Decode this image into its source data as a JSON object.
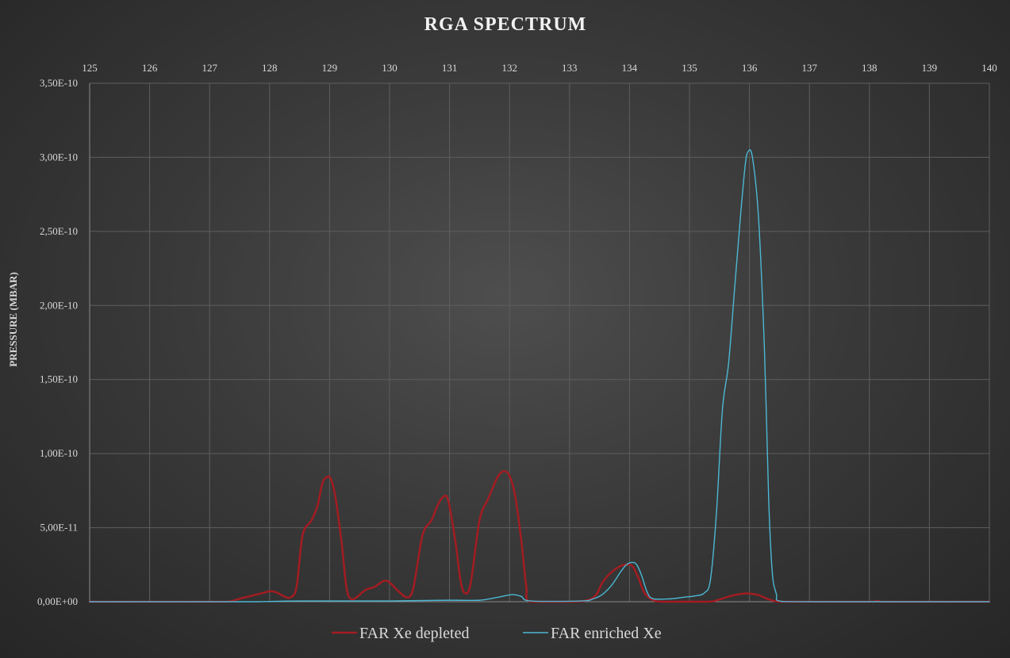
{
  "chart_data": {
    "type": "line",
    "title": "RGA SPECTRUM",
    "xlabel": "",
    "ylabel": "PRESSURE (MBAR)",
    "xlim": [
      125,
      140
    ],
    "ylim": [
      0,
      3.5e-10
    ],
    "x_ticks": [
      "125",
      "126",
      "127",
      "128",
      "129",
      "130",
      "131",
      "132",
      "133",
      "134",
      "135",
      "136",
      "137",
      "138",
      "139",
      "140"
    ],
    "y_ticks": [
      "0,00E+00",
      "5,00E-11",
      "1,00E-10",
      "1,50E-10",
      "2,00E-10",
      "2,50E-10",
      "3,00E-10",
      "3,50E-10"
    ],
    "grid": true,
    "x_axis_position": "top",
    "legend_position": "bottom",
    "series": [
      {
        "name": "FAR Xe depleted",
        "color": "#a31c22",
        "points": [
          [
            125.0,
            0.0
          ],
          [
            125.4,
            0.0
          ],
          [
            127.0,
            0.0
          ],
          [
            127.3,
            0.0
          ],
          [
            127.5,
            2e-12
          ],
          [
            127.7,
            4e-12
          ],
          [
            127.9,
            6e-12
          ],
          [
            128.0,
            7e-12
          ],
          [
            128.1,
            6.5e-12
          ],
          [
            128.25,
            3.5e-12
          ],
          [
            128.35,
            3e-12
          ],
          [
            128.45,
            1e-11
          ],
          [
            128.55,
            4.5e-11
          ],
          [
            128.7,
            5.5e-11
          ],
          [
            128.8,
            6.5e-11
          ],
          [
            128.88,
            8e-11
          ],
          [
            128.95,
            8.4e-11
          ],
          [
            129.02,
            8.3e-11
          ],
          [
            129.1,
            7e-11
          ],
          [
            129.2,
            4e-11
          ],
          [
            129.28,
            1e-11
          ],
          [
            129.35,
            2e-12
          ],
          [
            129.45,
            3e-12
          ],
          [
            129.6,
            8e-12
          ],
          [
            129.75,
            1e-11
          ],
          [
            129.9,
            1.4e-11
          ],
          [
            130.0,
            1.3e-11
          ],
          [
            130.15,
            7e-12
          ],
          [
            130.3,
            3e-12
          ],
          [
            130.4,
            1e-11
          ],
          [
            130.55,
            4.5e-11
          ],
          [
            130.7,
            5.5e-11
          ],
          [
            130.8,
            6.5e-11
          ],
          [
            130.9,
            7.1e-11
          ],
          [
            130.98,
            6.8e-11
          ],
          [
            131.1,
            4e-11
          ],
          [
            131.18,
            1.5e-11
          ],
          [
            131.25,
            6e-12
          ],
          [
            131.35,
            1.2e-11
          ],
          [
            131.5,
            5.5e-11
          ],
          [
            131.65,
            7e-11
          ],
          [
            131.8,
            8.4e-11
          ],
          [
            131.9,
            8.8e-11
          ],
          [
            132.0,
            8.5e-11
          ],
          [
            132.1,
            7e-11
          ],
          [
            132.2,
            4e-11
          ],
          [
            132.28,
            1e-11
          ],
          [
            132.35,
            0.0
          ],
          [
            133.0,
            0.0
          ],
          [
            133.3,
            1e-12
          ],
          [
            133.45,
            5e-12
          ],
          [
            133.55,
            1.3e-11
          ],
          [
            133.7,
            2e-11
          ],
          [
            133.85,
            2.4e-11
          ],
          [
            133.95,
            2.5e-11
          ],
          [
            134.05,
            2.4e-11
          ],
          [
            134.15,
            1.6e-11
          ],
          [
            134.25,
            6e-12
          ],
          [
            134.4,
            1e-12
          ],
          [
            134.6,
            0.0
          ],
          [
            135.3,
            0.0
          ],
          [
            135.5,
            1.5e-12
          ],
          [
            135.7,
            4e-12
          ],
          [
            135.9,
            5.5e-12
          ],
          [
            136.0,
            5.5e-12
          ],
          [
            136.15,
            4.5e-12
          ],
          [
            136.3,
            2e-12
          ],
          [
            136.5,
            0.0
          ],
          [
            137.0,
            0.0
          ],
          [
            138.0,
            0.0
          ],
          [
            138.15,
            5e-13
          ],
          [
            138.25,
            0.0
          ],
          [
            140.0,
            0.0
          ]
        ]
      },
      {
        "name": "FAR enriched Xe",
        "color": "#4bb8d4",
        "points": [
          [
            125.0,
            0.0
          ],
          [
            127.0,
            0.0
          ],
          [
            127.8,
            0.0
          ],
          [
            128.5,
            5e-13
          ],
          [
            130.0,
            5e-13
          ],
          [
            131.0,
            1e-12
          ],
          [
            131.5,
            1e-12
          ],
          [
            131.8,
            3e-12
          ],
          [
            132.05,
            4.8e-12
          ],
          [
            132.2,
            3.5e-12
          ],
          [
            132.35,
            5e-13
          ],
          [
            133.2,
            5e-13
          ],
          [
            133.4,
            2e-12
          ],
          [
            133.55,
            5e-12
          ],
          [
            133.7,
            1.1e-11
          ],
          [
            133.85,
            2e-11
          ],
          [
            133.95,
            2.5e-11
          ],
          [
            134.05,
            2.65e-11
          ],
          [
            134.12,
            2.5e-11
          ],
          [
            134.2,
            1.8e-11
          ],
          [
            134.3,
            6e-12
          ],
          [
            134.4,
            2e-12
          ],
          [
            134.7,
            2e-12
          ],
          [
            134.9,
            3e-12
          ],
          [
            135.1,
            4e-12
          ],
          [
            135.25,
            6e-12
          ],
          [
            135.35,
            1.5e-11
          ],
          [
            135.45,
            6e-11
          ],
          [
            135.55,
            1.3e-10
          ],
          [
            135.65,
            1.6e-10
          ],
          [
            135.75,
            2.1e-10
          ],
          [
            135.85,
            2.6e-10
          ],
          [
            135.93,
            2.95e-10
          ],
          [
            135.98,
            3.04e-10
          ],
          [
            136.05,
            3e-10
          ],
          [
            136.15,
            2.6e-10
          ],
          [
            136.25,
            1.7e-10
          ],
          [
            136.32,
            7e-11
          ],
          [
            136.38,
            2e-11
          ],
          [
            136.45,
            5e-12
          ],
          [
            136.5,
            5e-13
          ],
          [
            137.0,
            0.0
          ],
          [
            140.0,
            0.0
          ]
        ]
      }
    ]
  }
}
